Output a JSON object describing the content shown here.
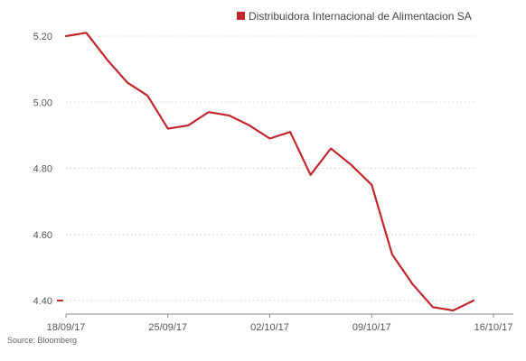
{
  "chart_data": {
    "type": "line",
    "x": [
      "18/09/17",
      "19/09/17",
      "20/09/17",
      "21/09/17",
      "22/09/17",
      "25/09/17",
      "26/09/17",
      "27/09/17",
      "28/09/17",
      "29/09/17",
      "02/10/17",
      "03/10/17",
      "04/10/17",
      "05/10/17",
      "06/10/17",
      "09/10/17",
      "10/10/17",
      "11/10/17",
      "12/10/17",
      "13/10/17",
      "16/10/17"
    ],
    "series": [
      {
        "name": "Distribuidora Internacional de Alimentacion SA",
        "color": "#c1272d",
        "values": [
          5.2,
          5.21,
          5.13,
          5.06,
          5.02,
          4.92,
          4.93,
          4.97,
          4.96,
          4.93,
          4.89,
          4.91,
          4.78,
          4.86,
          4.81,
          4.75,
          4.54,
          4.45,
          4.38,
          4.37,
          4.4
        ]
      }
    ],
    "x_tick_labels": [
      "18/09/17",
      "25/09/17",
      "02/10/17",
      "09/10/17",
      "16/10/17"
    ],
    "y_ticks": [
      "5.20",
      "5.00",
      "4.80",
      "4.60",
      "4.40"
    ],
    "ylim": [
      4.4,
      5.2
    ],
    "grid": "horizontal dotted",
    "legend_position": "top"
  },
  "source": "Source: Bloomberg"
}
